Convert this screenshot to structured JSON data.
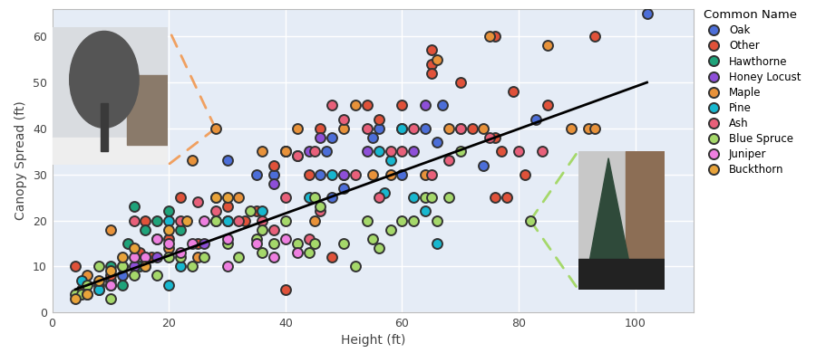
{
  "chart_data": {
    "type": "scatter",
    "x_label": "Height (ft)",
    "y_label": "Canopy Spread (ft)",
    "xlim": [
      0,
      110
    ],
    "xticks": [
      0,
      20,
      40,
      60,
      80,
      100
    ],
    "ylim": [
      0,
      66
    ],
    "yticks": [
      0,
      10,
      20,
      30,
      40,
      50,
      60
    ],
    "grid": true,
    "legend": "right",
    "legend_title": "Common Name",
    "series": [
      {
        "name": "Oak",
        "color": "#4C6ED8",
        "x": [
          102,
          83,
          74,
          67,
          64,
          56,
          55,
          48,
          47,
          46,
          40,
          38,
          35,
          30,
          12,
          8,
          10,
          60,
          66,
          50,
          48
        ],
        "values": [
          65,
          42,
          32,
          45,
          40,
          40,
          38,
          38,
          35,
          30,
          35,
          30,
          30,
          33,
          8,
          6,
          7,
          30,
          37,
          27,
          25
        ]
      },
      {
        "name": "Other",
        "color": "#E0523A",
        "x": [
          4,
          10,
          12,
          15,
          16,
          17,
          20,
          22,
          25,
          28,
          30,
          33,
          35,
          38,
          40,
          40,
          42,
          44,
          46,
          48,
          50,
          54,
          56,
          60,
          65,
          65,
          65,
          70,
          72,
          76,
          76,
          77,
          78,
          79,
          81,
          85,
          93,
          76
        ],
        "values": [
          10,
          8,
          10,
          13,
          20,
          12,
          16,
          25,
          15,
          20,
          23,
          20,
          22,
          32,
          5,
          35,
          34,
          30,
          40,
          12,
          30,
          45,
          42,
          45,
          57,
          54,
          52,
          50,
          40,
          38,
          60,
          35,
          25,
          48,
          30,
          45,
          60,
          25
        ]
      },
      {
        "name": "Hawthorne",
        "color": "#1FA37A",
        "x": [
          8,
          12,
          13,
          14,
          16,
          18,
          20,
          10,
          22,
          15
        ],
        "values": [
          5,
          6,
          15,
          23,
          18,
          20,
          22,
          10,
          18,
          10
        ]
      },
      {
        "name": "Honey Locust",
        "color": "#8E4FD8",
        "x": [
          10,
          14,
          18,
          26,
          30,
          46,
          50,
          54,
          62,
          64,
          38,
          44
        ],
        "values": [
          6,
          10,
          12,
          15,
          20,
          38,
          30,
          35,
          35,
          45,
          28,
          35
        ]
      },
      {
        "name": "Maple",
        "color": "#E8923A",
        "x": [
          5,
          6,
          10,
          16,
          20,
          24,
          25,
          28,
          28,
          32,
          36,
          40,
          42,
          45,
          50,
          52,
          55,
          58,
          60,
          64,
          66,
          68,
          70,
          75,
          89,
          92,
          93,
          85,
          74
        ],
        "values": [
          5,
          8,
          18,
          12,
          14,
          33,
          12,
          40,
          25,
          25,
          35,
          35,
          40,
          20,
          40,
          45,
          30,
          30,
          40,
          30,
          55,
          40,
          40,
          60,
          40,
          40,
          40,
          58,
          40
        ]
      },
      {
        "name": "Pine",
        "color": "#17B7CF",
        "x": [
          5,
          8,
          20,
          20,
          22,
          30,
          36,
          44,
          48,
          56,
          58,
          62,
          64,
          66,
          57,
          60
        ],
        "values": [
          7,
          5,
          6,
          20,
          10,
          20,
          22,
          25,
          30,
          35,
          33,
          25,
          22,
          15,
          26,
          40
        ]
      },
      {
        "name": "Ash",
        "color": "#E8607A",
        "x": [
          14,
          18,
          22,
          25,
          28,
          32,
          36,
          38,
          40,
          42,
          45,
          48,
          50,
          52,
          54,
          56,
          58,
          60,
          62,
          65,
          68,
          70,
          75,
          80,
          84,
          44,
          46
        ],
        "values": [
          20,
          16,
          20,
          24,
          22,
          20,
          20,
          18,
          25,
          34,
          35,
          45,
          42,
          30,
          40,
          25,
          35,
          35,
          40,
          30,
          33,
          40,
          38,
          35,
          35,
          16,
          22
        ]
      },
      {
        "name": "Blue Spruce",
        "color": "#A5D86A",
        "x": [
          4,
          5,
          6,
          8,
          10,
          12,
          14,
          16,
          18,
          20,
          22,
          24,
          26,
          28,
          30,
          32,
          34,
          35,
          36,
          38,
          40,
          42,
          44,
          45,
          46,
          50,
          52,
          54,
          55,
          56,
          58,
          60,
          62,
          64,
          66,
          68,
          70,
          65,
          82,
          45,
          36
        ],
        "values": [
          4,
          4,
          6,
          10,
          3,
          10,
          8,
          10,
          8,
          12,
          12,
          10,
          12,
          20,
          15,
          12,
          22,
          16,
          13,
          15,
          20,
          15,
          13,
          25,
          23,
          15,
          10,
          20,
          16,
          14,
          18,
          20,
          20,
          25,
          20,
          25,
          35,
          25,
          20,
          15,
          18
        ]
      },
      {
        "name": "Juniper",
        "color": "#EE7FE0",
        "x": [
          6,
          10,
          14,
          16,
          18,
          20,
          22,
          24,
          26,
          30,
          35,
          38,
          40,
          42,
          30
        ],
        "values": [
          4,
          6,
          12,
          12,
          16,
          15,
          13,
          15,
          20,
          16,
          15,
          12,
          16,
          13,
          10
        ]
      },
      {
        "name": "Buckthorn",
        "color": "#E8A33A",
        "x": [
          4,
          6,
          8,
          10,
          12,
          14,
          16,
          20,
          23,
          28,
          30
        ],
        "values": [
          3,
          4,
          7,
          9,
          12,
          14,
          10,
          18,
          20,
          25,
          25
        ]
      }
    ],
    "trend_line": {
      "x": [
        4,
        102
      ],
      "values": [
        5,
        50
      ],
      "color": "#000000"
    }
  }
}
